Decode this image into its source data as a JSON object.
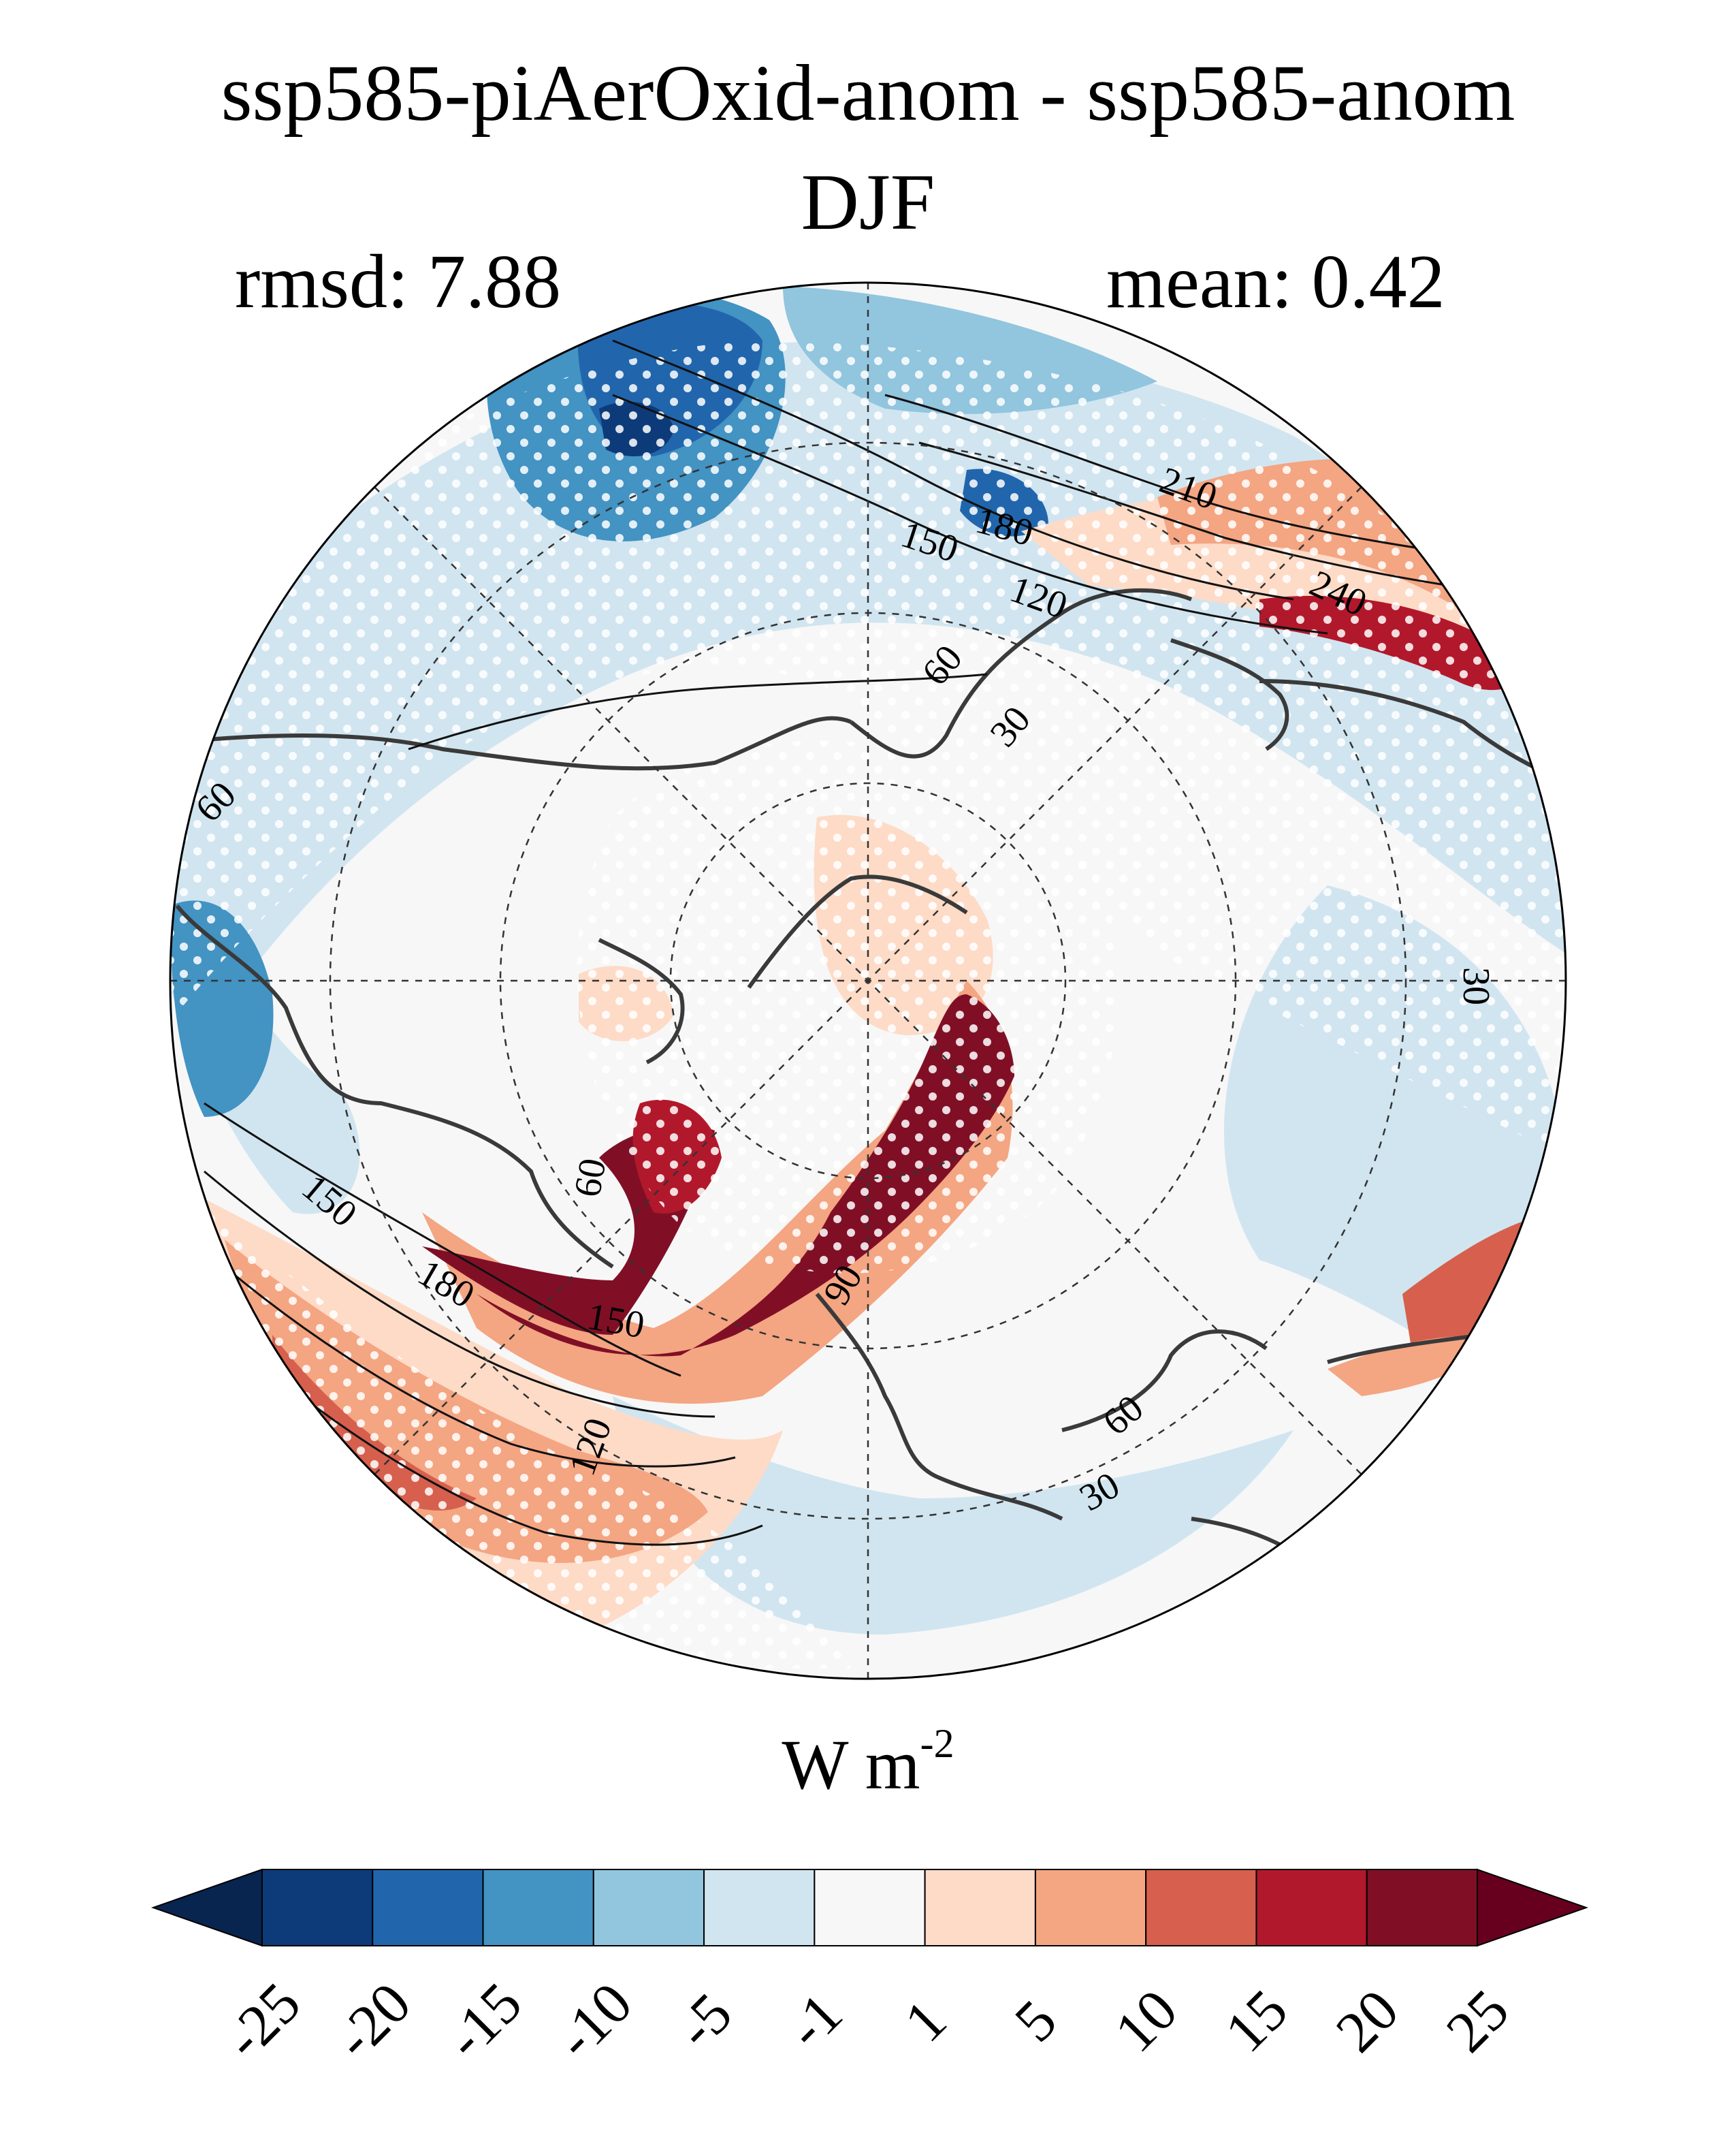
{
  "title": "ssp585-piAerOxid-anom - ssp585-anom",
  "season": "DJF",
  "rmsd_label": "rmsd: 7.88",
  "mean_label": "mean: 0.42",
  "units": {
    "base": "W m",
    "exponent": "-2"
  },
  "colorbar": {
    "levels": [
      "-25",
      "-20",
      "-15",
      "-10",
      "-5",
      "-1",
      "1",
      "5",
      "10",
      "15",
      "20",
      "25"
    ],
    "colors": [
      "#08254f",
      "#0d3b7a",
      "#2166ac",
      "#4393c3",
      "#92c5de",
      "#d1e5f0",
      "#f7f7f7",
      "#fddbc7",
      "#f4a582",
      "#d6604d",
      "#b2182b",
      "#800f26",
      "#67001f"
    ]
  },
  "contour_labels": [
    "210",
    "240",
    "180",
    "150",
    "120",
    "60",
    "30",
    "60",
    "30",
    "150",
    "180",
    "150",
    "120",
    "60",
    "60",
    "30",
    "90"
  ]
}
